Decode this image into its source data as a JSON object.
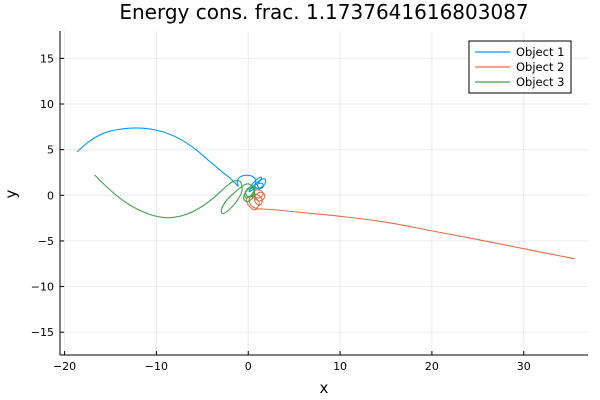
{
  "chart_data": {
    "type": "line",
    "title": "Energy cons. frac. 1.1737641616803087",
    "xlabel": "x",
    "ylabel": "y",
    "xlim": [
      -20.5,
      37.0
    ],
    "ylim": [
      -17.5,
      18.0
    ],
    "xticks": [
      -20,
      -10,
      0,
      10,
      20,
      30
    ],
    "xtick_labels": [
      "−20",
      "−10",
      "0",
      "10",
      "20",
      "30"
    ],
    "yticks": [
      -15,
      -10,
      -5,
      0,
      5,
      10,
      15
    ],
    "ytick_labels": [
      "−15",
      "−10",
      "−5",
      "0",
      "5",
      "10",
      "15"
    ],
    "grid": true,
    "legend_position": "top-right",
    "series": [
      {
        "name": "Object 1",
        "color": "#009AFA",
        "x": [
          -18.6,
          -17.2,
          -15.5,
          -13.5,
          -11.5,
          -9.5,
          -7.5,
          -5.7,
          -4.3,
          -3.0,
          -2.0,
          -1.4,
          -1.1,
          -1.2,
          -0.9,
          -0.2,
          0.4,
          0.8,
          0.7,
          0.3,
          0.5,
          1.0,
          1.4,
          1.4,
          1.0,
          1.2,
          1.7,
          1.9,
          1.7,
          1.2,
          0.7,
          1.1,
          1.6,
          1.5,
          0.9,
          0.3,
          0.1,
          0.3,
          0.8,
          0.6,
          0.1
        ],
        "y": [
          4.8,
          6.0,
          6.9,
          7.3,
          7.35,
          7.0,
          6.2,
          5.0,
          3.8,
          2.7,
          1.9,
          1.3,
          1.0,
          1.5,
          2.0,
          2.2,
          2.1,
          1.7,
          1.1,
          0.9,
          1.3,
          1.8,
          2.0,
          1.7,
          1.2,
          0.8,
          1.1,
          1.6,
          1.8,
          1.6,
          1.1,
          0.7,
          0.9,
          1.3,
          1.2,
          0.8,
          0.4,
          0.5,
          0.8,
          0.9,
          0.6
        ]
      },
      {
        "name": "Object 2",
        "color": "#E26F46",
        "x": [
          35.5,
          30.0,
          25.0,
          20.0,
          15.0,
          10.0,
          6.0,
          3.0,
          1.5,
          1.0,
          0.6,
          0.2,
          -0.1,
          -0.2,
          0.2,
          0.9,
          1.2,
          0.9,
          0.4,
          0.1,
          0.3,
          0.9,
          1.4,
          1.5,
          1.2,
          0.8,
          0.7,
          1.0,
          1.5,
          1.8,
          1.6,
          1.1,
          0.6,
          0.5,
          0.9,
          1.4,
          1.6,
          1.2,
          0.6
        ],
        "y": [
          -6.95,
          -5.85,
          -4.85,
          -3.9,
          -2.95,
          -2.3,
          -1.9,
          -1.6,
          -1.5,
          -1.5,
          -1.6,
          -1.3,
          -0.9,
          -0.4,
          -0.1,
          -0.4,
          -0.9,
          -1.4,
          -1.2,
          -0.6,
          -0.1,
          0.1,
          -0.3,
          -0.8,
          -1.1,
          -0.8,
          -0.3,
          0.2,
          0.3,
          0.0,
          -0.5,
          -0.6,
          -0.2,
          0.3,
          0.6,
          0.5,
          0.1,
          -0.3,
          -0.1
        ]
      },
      {
        "name": "Object 3",
        "color": "#3EA44E",
        "x": [
          -16.7,
          -15.5,
          -14.0,
          -12.5,
          -11.0,
          -9.5,
          -8.0,
          -6.5,
          -5.0,
          -3.8,
          -2.8,
          -2.0,
          -1.3,
          -0.8,
          -0.7,
          -1.3,
          -2.1,
          -2.8,
          -2.9,
          -2.4,
          -1.6,
          -0.9,
          -0.3,
          0.2,
          0.5,
          0.7,
          0.4,
          -0.2,
          -0.5,
          -0.3,
          0.2,
          0.6,
          0.7,
          0.3,
          -0.2,
          -0.4,
          -0.1,
          0.4,
          0.7,
          0.5,
          0.0,
          -0.3
        ],
        "y": [
          2.2,
          1.0,
          -0.3,
          -1.3,
          -2.0,
          -2.4,
          -2.4,
          -2.0,
          -1.2,
          -0.3,
          0.6,
          1.3,
          1.6,
          1.4,
          0.4,
          -0.7,
          -1.6,
          -2.0,
          -1.5,
          -0.6,
          0.2,
          0.8,
          1.2,
          1.2,
          0.8,
          0.2,
          -0.4,
          -0.7,
          -0.3,
          0.3,
          0.9,
          1.0,
          0.6,
          0.0,
          -0.3,
          0.1,
          0.7,
          0.9,
          0.5,
          0.0,
          -0.2,
          0.2
        ]
      }
    ]
  }
}
